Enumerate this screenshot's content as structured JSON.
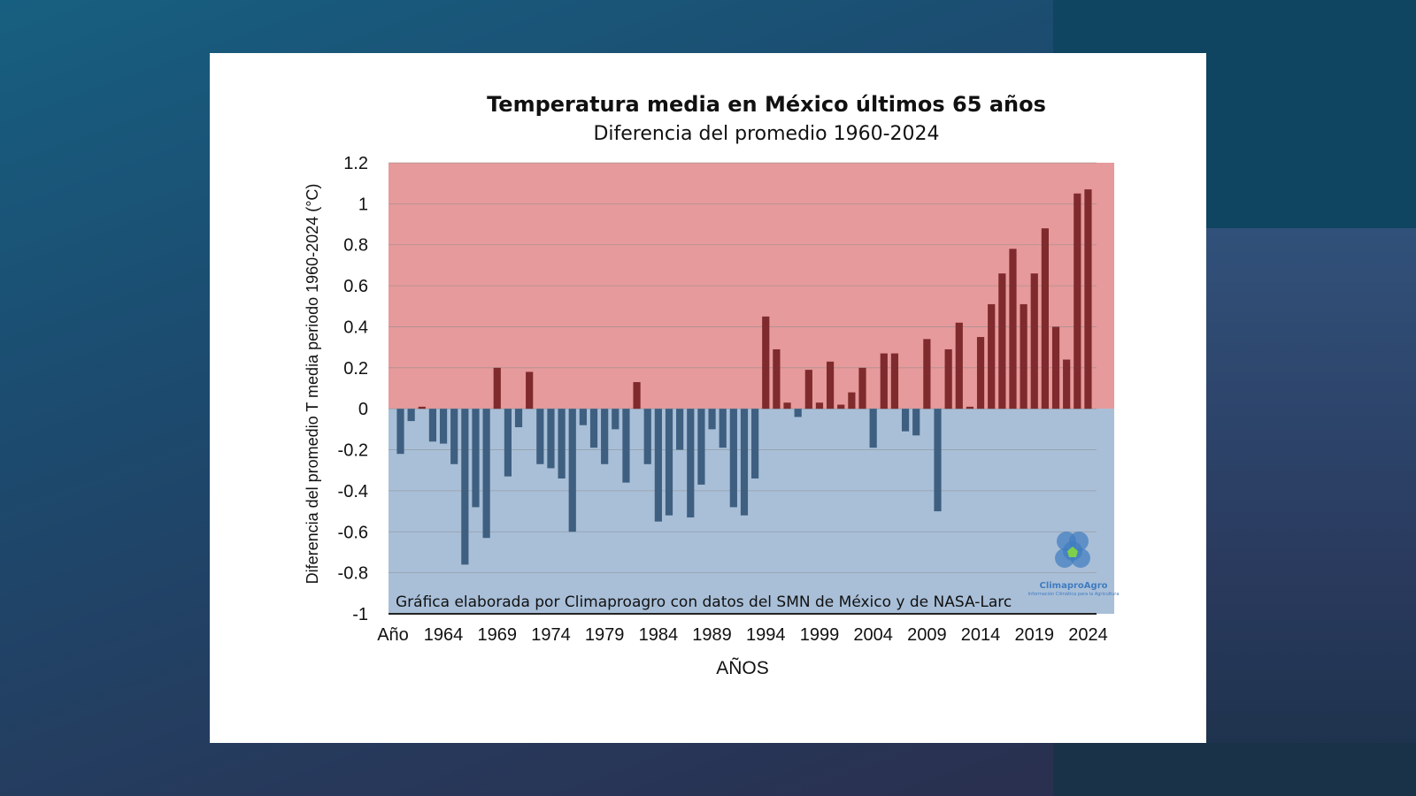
{
  "chart_data": {
    "type": "bar",
    "title": "Temperatura media en México últimos 65 años",
    "subtitle": "Diferencia del promedio 1960-2024",
    "xlabel": "AÑOS",
    "ylabel": "Diferencia del promedio T media periodo  1960-2024 (°C)",
    "ylim": [
      -1,
      1.2
    ],
    "yticks": [
      "1.2",
      "1",
      "0.8",
      "0.6",
      "0.4",
      "0.2",
      "0",
      "-0.2",
      "-0.4",
      "-0.6",
      "-0.8",
      "-1"
    ],
    "xticks": [
      "Año",
      "1964",
      "1969",
      "1974",
      "1979",
      "1984",
      "1989",
      "1994",
      "1999",
      "2004",
      "2009",
      "2014",
      "2019",
      "2024"
    ],
    "categories": [
      1960,
      1961,
      1962,
      1963,
      1964,
      1965,
      1966,
      1967,
      1968,
      1969,
      1970,
      1971,
      1972,
      1973,
      1974,
      1975,
      1976,
      1977,
      1978,
      1979,
      1980,
      1981,
      1982,
      1983,
      1984,
      1985,
      1986,
      1987,
      1988,
      1989,
      1990,
      1991,
      1992,
      1993,
      1994,
      1995,
      1996,
      1997,
      1998,
      1999,
      2000,
      2001,
      2002,
      2003,
      2004,
      2005,
      2006,
      2007,
      2008,
      2009,
      2010,
      2011,
      2012,
      2013,
      2014,
      2015,
      2016,
      2017,
      2018,
      2019,
      2020,
      2021,
      2022,
      2023,
      2024
    ],
    "values": [
      -0.22,
      -0.06,
      0.01,
      -0.16,
      -0.17,
      -0.27,
      -0.76,
      -0.48,
      -0.63,
      0.2,
      -0.33,
      -0.09,
      0.18,
      -0.27,
      -0.29,
      -0.34,
      -0.6,
      -0.08,
      -0.19,
      -0.27,
      -0.1,
      -0.36,
      0.13,
      -0.27,
      -0.55,
      -0.52,
      -0.2,
      -0.53,
      -0.37,
      -0.1,
      -0.19,
      -0.48,
      -0.52,
      -0.34,
      0.45,
      0.29,
      0.03,
      -0.04,
      0.19,
      0.03,
      0.23,
      0.02,
      0.08,
      0.2,
      -0.19,
      0.27,
      0.27,
      -0.11,
      -0.13,
      0.34,
      -0.5,
      0.29,
      0.42,
      0.01,
      0.35,
      0.51,
      0.66,
      0.78,
      0.51,
      0.66,
      0.88,
      0.4,
      0.24,
      1.05,
      1.07
    ],
    "positive_color": "#7f2a2c",
    "negative_color": "#3e5f80",
    "positive_background": "#e69a9b",
    "negative_background": "#a9bfd8",
    "grid": true,
    "annotation": "Gráfica elaborada por Climaproagro con datos del SMN de México y de NASA-Larc"
  },
  "logo": {
    "name": "ClimaproAgro",
    "tagline": "Información Climática para la Agricultura"
  }
}
